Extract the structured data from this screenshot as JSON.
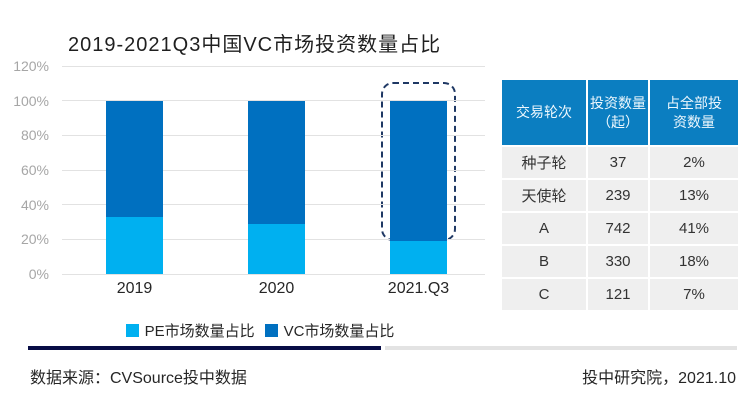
{
  "title": "2019-2021Q3中国VC市场投资数量占比",
  "chart_data": {
    "type": "bar",
    "stacked": true,
    "title": "2019-2021Q3中国VC市场投资数量占比",
    "categories": [
      "2019",
      "2020",
      "2021.Q3"
    ],
    "series": [
      {
        "name": "PE市场数量占比",
        "color": "#00B0F0",
        "values": [
          33,
          29,
          19
        ]
      },
      {
        "name": "VC市场数量占比",
        "color": "#0070C0",
        "values": [
          67,
          71,
          81
        ]
      }
    ],
    "yticks": [
      "0%",
      "20%",
      "40%",
      "60%",
      "80%",
      "100%",
      "120%"
    ],
    "ylim": [
      0,
      120
    ],
    "grid": true,
    "legend_position": "bottom",
    "highlight": {
      "category": "2021.Q3",
      "series": "VC市场数量占比",
      "style": "dashed-outline",
      "color": "#1F3864"
    }
  },
  "table": {
    "headers": [
      "交易轮次",
      "投资数量（起）",
      "占全部投资数量"
    ],
    "rows": [
      {
        "round": "种子轮",
        "count": "37",
        "share": "2%"
      },
      {
        "round": "天使轮",
        "count": "239",
        "share": "13%"
      },
      {
        "round": "A",
        "count": "742",
        "share": "41%"
      },
      {
        "round": "B",
        "count": "330",
        "share": "18%"
      },
      {
        "round": "C",
        "count": "121",
        "share": "7%"
      }
    ]
  },
  "footer": {
    "source": "数据来源：CVSource投中数据",
    "credit": "投中研究院，2021.10"
  },
  "colors": {
    "pe_blue": "#00B0F0",
    "vc_blue": "#0070C0",
    "table_header_bg": "#0B7EC1",
    "table_row_bg": "#EFEFEF",
    "highlight_outline": "#1F3864",
    "divider_navy": "#070D45",
    "divider_gray": "#E3E3E3",
    "gridline": "#E2E2E2",
    "axis_label": "#A6A6A6"
  }
}
